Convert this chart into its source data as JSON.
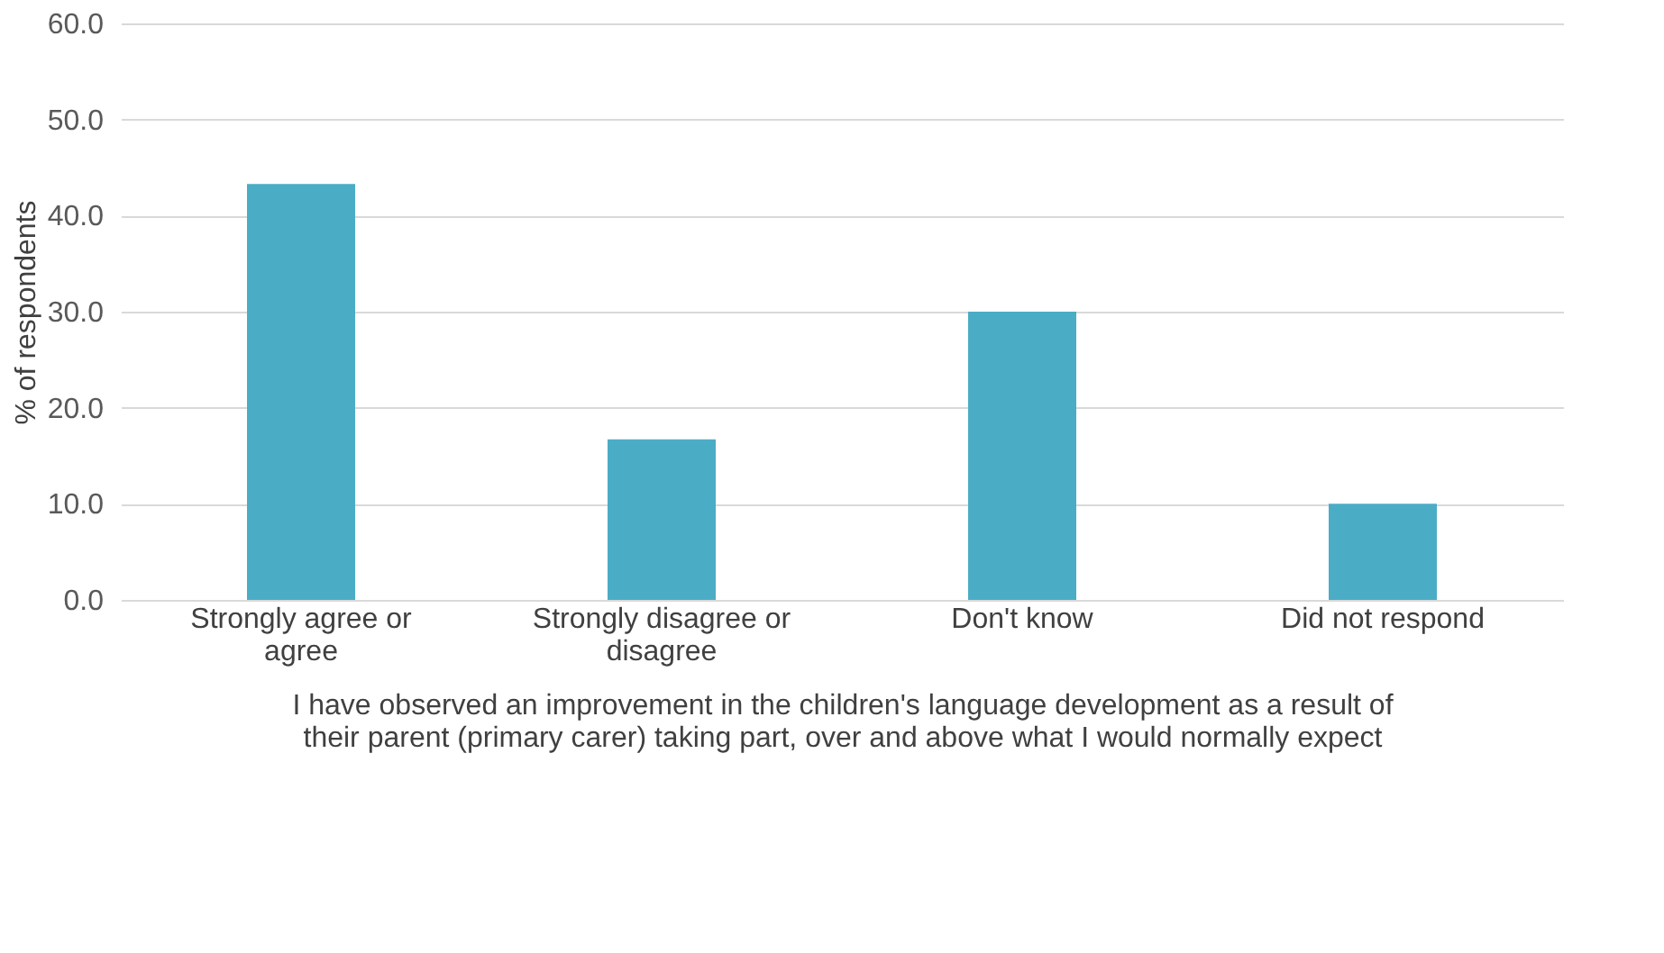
{
  "chart_data": {
    "type": "bar",
    "categories": [
      "Strongly agree or agree",
      "Strongly disagree or disagree",
      "Don't know",
      "Did not respond"
    ],
    "values": [
      43.3,
      16.7,
      30.0,
      10.0
    ],
    "color": "#4bacc6",
    "xlabel": "I have observed an improvement in the children's language development as a result of their parent (primary carer) taking part, over and above what I would normally expect",
    "ylabel": "% of respondents",
    "ylim": [
      0,
      60
    ],
    "yticks": [
      {
        "value": 0,
        "label": "0.0"
      },
      {
        "value": 10,
        "label": "10.0"
      },
      {
        "value": 20,
        "label": "20.0"
      },
      {
        "value": 30,
        "label": "30.0"
      },
      {
        "value": 40,
        "label": "40.0"
      },
      {
        "value": 50,
        "label": "50.0"
      },
      {
        "value": 60,
        "label": "60.0"
      }
    ],
    "grid": "y"
  }
}
